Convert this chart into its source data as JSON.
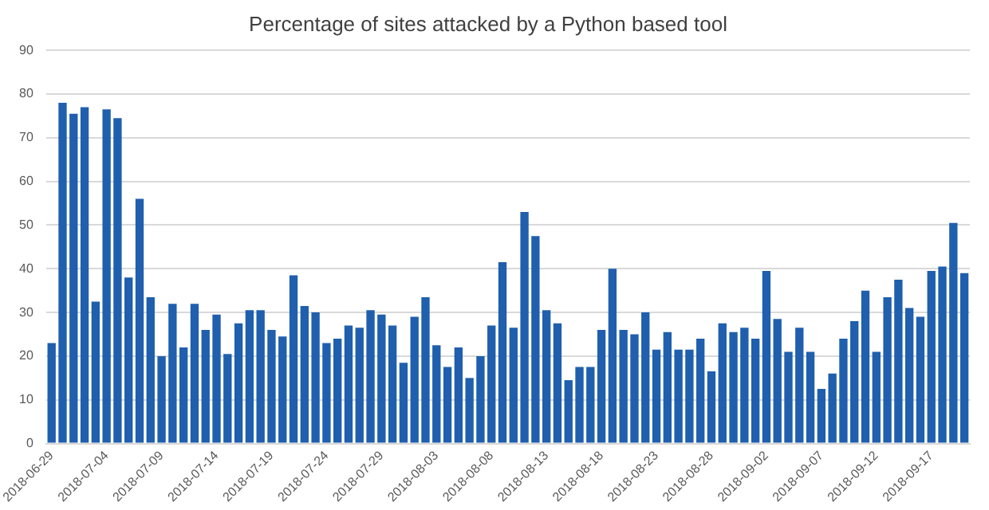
{
  "chart_data": {
    "type": "bar",
    "title": "Percentage of sites attacked by a Python based tool",
    "categories": [
      "2018-06-29",
      null,
      null,
      null,
      null,
      "2018-07-04",
      null,
      null,
      null,
      null,
      "2018-07-09",
      null,
      null,
      null,
      null,
      "2018-07-14",
      null,
      null,
      null,
      null,
      "2018-07-19",
      null,
      null,
      null,
      null,
      "2018-07-24",
      null,
      null,
      null,
      null,
      "2018-07-29",
      null,
      null,
      null,
      null,
      "2018-08-03",
      null,
      null,
      null,
      null,
      "2018-08-08",
      null,
      null,
      null,
      null,
      "2018-08-13",
      null,
      null,
      null,
      null,
      "2018-08-18",
      null,
      null,
      null,
      null,
      "2018-08-23",
      null,
      null,
      null,
      null,
      "2018-08-28",
      null,
      null,
      null,
      null,
      "2018-09-02",
      null,
      null,
      null,
      null,
      "2018-09-07",
      null,
      null,
      null,
      null,
      "2018-09-12",
      null,
      null,
      null,
      null,
      "2018-09-17",
      null,
      null,
      null
    ],
    "values": [
      23,
      78,
      75.5,
      77,
      32.5,
      76.5,
      74.5,
      38,
      56,
      33.5,
      20,
      32,
      22,
      32,
      26,
      29.5,
      20.5,
      27.5,
      30.5,
      30.5,
      26,
      24.5,
      38.5,
      31.5,
      30,
      23,
      24,
      27,
      26.5,
      30.5,
      29.5,
      27,
      18.5,
      29,
      33.5,
      22.5,
      17.5,
      22,
      15,
      20,
      27,
      41.5,
      26.5,
      53,
      47.5,
      30.5,
      27.5,
      14.5,
      17.5,
      17.5,
      26,
      40,
      26,
      25,
      30,
      21.5,
      25.5,
      21.5,
      21.5,
      24,
      16.5,
      27.5,
      25.5,
      26.5,
      24,
      39.5,
      28.5,
      21,
      26.5,
      21,
      12.5,
      16,
      24,
      28,
      35,
      21,
      33.5,
      37.5,
      31,
      29,
      39.5,
      40.5,
      50.5,
      39
    ],
    "color": "#1f5fad",
    "ylim": [
      0,
      90
    ],
    "yticks": [
      0,
      10,
      20,
      30,
      40,
      50,
      60,
      70,
      80,
      90
    ],
    "grid": "y"
  }
}
